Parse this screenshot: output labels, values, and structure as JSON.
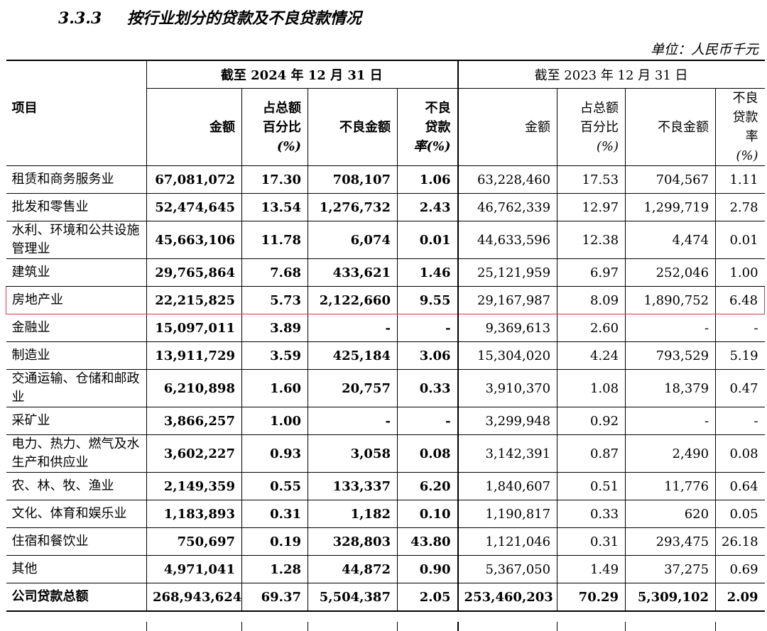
{
  "section": {
    "number": "3.3.3",
    "title": "按行业划分的贷款及不良贷款情况"
  },
  "unit": "单位：人民币千元",
  "header": {
    "item": "项目",
    "group_2024": "截至 2024 年 12 月 31 日",
    "group_2023": "截至 2023 年 12 月 31 日",
    "amount": "金额",
    "pct_l1": "占总额",
    "pct_l2": "百分比",
    "pct_l3": "(%)",
    "npl_amount": "不良金额",
    "npl_rate_l1": "不良",
    "npl_rate_l2": "贷款",
    "npl_rate_l3": "率(%)",
    "npl_rate_2023_l1": "不良",
    "npl_rate_2023_l2": "贷款率",
    "npl_rate_2023_l3": "(%)"
  },
  "rows": [
    {
      "name": "租赁和商务服务业",
      "y2024": [
        "67,081,072",
        "17.30",
        "708,107",
        "1.06"
      ],
      "y2023": [
        "63,228,460",
        "17.53",
        "704,567",
        "1.11"
      ]
    },
    {
      "name": "批发和零售业",
      "y2024": [
        "52,474,645",
        "13.54",
        "1,276,732",
        "2.43"
      ],
      "y2023": [
        "46,762,339",
        "12.97",
        "1,299,719",
        "2.78"
      ]
    },
    {
      "name": "水利、环境和公共设施管理业",
      "y2024": [
        "45,663,106",
        "11.78",
        "6,074",
        "0.01"
      ],
      "y2023": [
        "44,633,596",
        "12.38",
        "4,474",
        "0.01"
      ]
    },
    {
      "name": "建筑业",
      "y2024": [
        "29,765,864",
        "7.68",
        "433,621",
        "1.46"
      ],
      "y2023": [
        "25,121,959",
        "6.97",
        "252,046",
        "1.00"
      ]
    },
    {
      "name": "房地产业",
      "y2024": [
        "22,215,825",
        "5.73",
        "2,122,660",
        "9.55"
      ],
      "y2023": [
        "29,167,987",
        "8.09",
        "1,890,752",
        "6.48"
      ]
    },
    {
      "name": "金融业",
      "y2024": [
        "15,097,011",
        "3.89",
        "-",
        "-"
      ],
      "y2023": [
        "9,369,613",
        "2.60",
        "-",
        "-"
      ]
    },
    {
      "name": "制造业",
      "y2024": [
        "13,911,729",
        "3.59",
        "425,184",
        "3.06"
      ],
      "y2023": [
        "15,304,020",
        "4.24",
        "793,529",
        "5.19"
      ]
    },
    {
      "name": "交通运输、仓储和邮政业",
      "y2024": [
        "6,210,898",
        "1.60",
        "20,757",
        "0.33"
      ],
      "y2023": [
        "3,910,370",
        "1.08",
        "18,379",
        "0.47"
      ]
    },
    {
      "name": "采矿业",
      "y2024": [
        "3,866,257",
        "1.00",
        "-",
        "-"
      ],
      "y2023": [
        "3,299,948",
        "0.92",
        "-",
        "-"
      ]
    },
    {
      "name": "电力、热力、燃气及水生产和供应业",
      "y2024": [
        "3,602,227",
        "0.93",
        "3,058",
        "0.08"
      ],
      "y2023": [
        "3,142,391",
        "0.87",
        "2,490",
        "0.08"
      ]
    },
    {
      "name": "农、林、牧、渔业",
      "y2024": [
        "2,149,359",
        "0.55",
        "133,337",
        "6.20"
      ],
      "y2023": [
        "1,840,607",
        "0.51",
        "11,776",
        "0.64"
      ]
    },
    {
      "name": "文化、体育和娱乐业",
      "y2024": [
        "1,183,893",
        "0.31",
        "1,182",
        "0.10"
      ],
      "y2023": [
        "1,190,817",
        "0.33",
        "620",
        "0.05"
      ]
    },
    {
      "name": "住宿和餐饮业",
      "y2024": [
        "750,697",
        "0.19",
        "328,803",
        "43.80"
      ],
      "y2023": [
        "1,121,046",
        "0.31",
        "293,475",
        "26.18"
      ]
    },
    {
      "name": "其他",
      "y2024": [
        "4,971,041",
        "1.28",
        "44,872",
        "0.90"
      ],
      "y2023": [
        "5,367,050",
        "1.49",
        "37,275",
        "0.69"
      ]
    }
  ],
  "total": {
    "name": "公司贷款总额",
    "y2024": [
      "268,943,624",
      "69.37",
      "5,504,387",
      "2.05"
    ],
    "y2023": [
      "253,460,203",
      "70.29",
      "5,309,102",
      "2.09"
    ]
  },
  "highlight_row_index": 4,
  "highlight_color": "#d23b43"
}
